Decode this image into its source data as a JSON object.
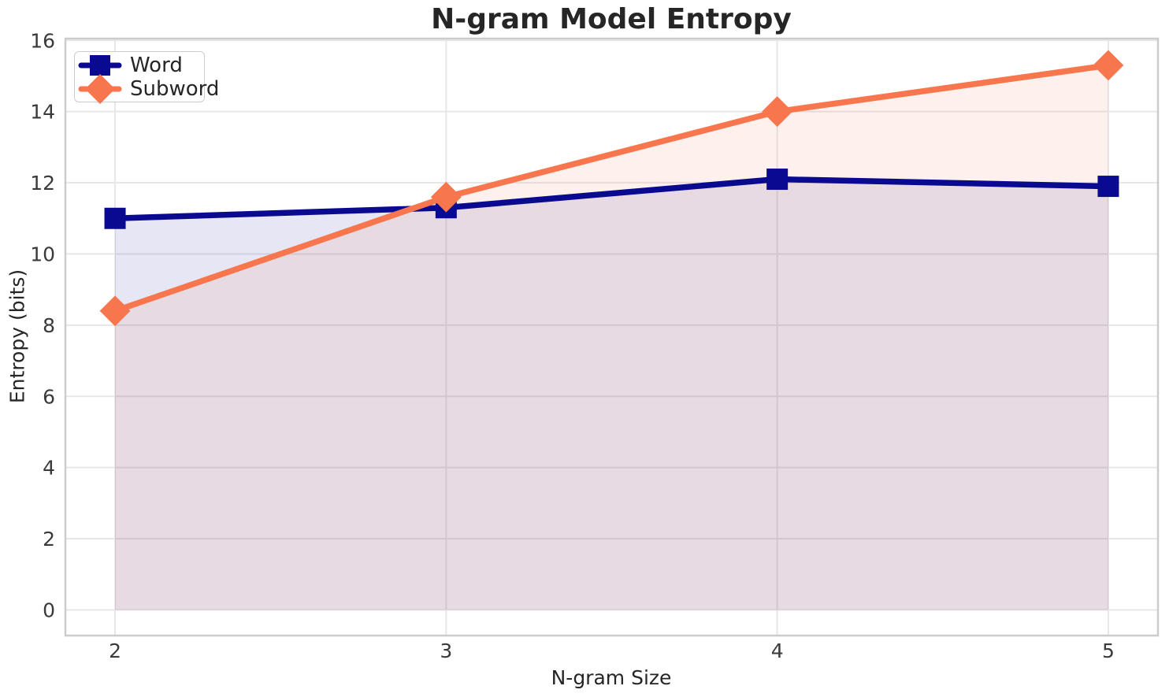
{
  "chart_data": {
    "type": "line",
    "title": "N-gram Model Entropy",
    "xlabel": "N-gram Size",
    "ylabel": "Entropy (bits)",
    "x": [
      2,
      3,
      4,
      5
    ],
    "series": [
      {
        "name": "Word",
        "color": "#0a0a90",
        "marker": "square",
        "values": [
          11.0,
          11.3,
          12.1,
          11.9
        ]
      },
      {
        "name": "Subword",
        "color": "#f8764e",
        "marker": "diamond",
        "values": [
          8.4,
          11.6,
          14.0,
          15.3
        ]
      }
    ],
    "fill_to_zero": true,
    "fill_alpha": 0.1,
    "xticks": [
      "2",
      "3",
      "4",
      "5"
    ],
    "xtick_values": [
      2,
      3,
      4,
      5
    ],
    "yticks": [
      "0",
      "2",
      "4",
      "6",
      "8",
      "10",
      "12",
      "14",
      "16"
    ],
    "ytick_values": [
      0,
      2,
      4,
      6,
      8,
      10,
      12,
      14,
      16
    ],
    "xlim": [
      1.85,
      5.15
    ],
    "ylim": [
      -0.72,
      16.05
    ],
    "grid": true,
    "legend_position": "upper-left",
    "colors": {
      "background": "#ffffff",
      "grid": "#e7e7e7",
      "spine": "#cccccc",
      "title_text": "#262626",
      "tick_text": "#3a3a3a"
    }
  }
}
